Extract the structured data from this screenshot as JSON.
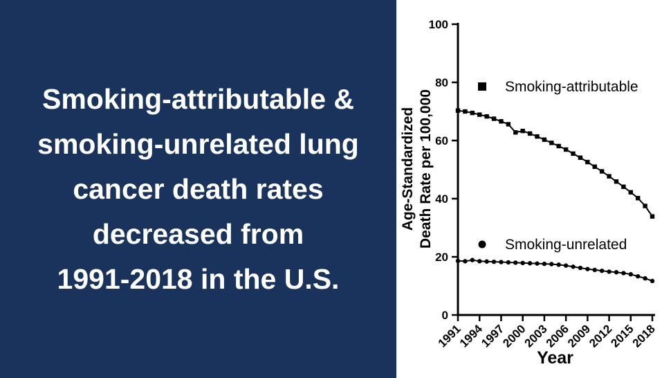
{
  "left_panel": {
    "bg_color": "#1a335c",
    "text_color": "#ffffff",
    "lines": [
      "Smoking-attributable &",
      "smoking-unrelated lung",
      "cancer death rates",
      "decreased from",
      "1991-2018 in the U.S."
    ]
  },
  "chart_data": {
    "type": "line",
    "title": "",
    "xlabel": "Year",
    "ylabel_lines": [
      "Age-Standardized",
      "Death Rate per 100,000"
    ],
    "x": [
      1991,
      1992,
      1993,
      1994,
      1995,
      1996,
      1997,
      1998,
      1999,
      2000,
      2001,
      2002,
      2003,
      2004,
      2005,
      2006,
      2007,
      2008,
      2009,
      2010,
      2011,
      2012,
      2013,
      2014,
      2015,
      2016,
      2017,
      2018
    ],
    "series": [
      {
        "name": "Smoking-attributable",
        "marker": "square",
        "values": [
          70.3,
          70.0,
          69.5,
          68.9,
          68.3,
          67.5,
          66.6,
          65.6,
          62.8,
          63.3,
          62.4,
          61.4,
          60.3,
          59.2,
          58.1,
          56.9,
          55.5,
          54.1,
          52.6,
          51.0,
          49.4,
          47.7,
          45.9,
          44.1,
          42.2,
          40.2,
          37.5,
          33.9
        ]
      },
      {
        "name": "Smoking-unrelated",
        "marker": "circle",
        "values": [
          18.6,
          18.5,
          18.9,
          18.5,
          18.4,
          18.3,
          18.2,
          18.1,
          18.0,
          17.9,
          17.8,
          17.7,
          17.6,
          17.5,
          17.3,
          17.0,
          16.6,
          16.2,
          15.8,
          15.5,
          15.2,
          14.9,
          14.7,
          14.4,
          14.0,
          13.3,
          12.6,
          11.7
        ]
      }
    ],
    "ylim": [
      0,
      100
    ],
    "yticks": [
      0,
      20,
      40,
      60,
      80,
      100
    ],
    "xticks": [
      1991,
      1994,
      1997,
      2000,
      2003,
      2006,
      2009,
      2012,
      2015,
      2018
    ],
    "grid": false,
    "legend_position": "inside-left",
    "line_color": "#000000"
  }
}
